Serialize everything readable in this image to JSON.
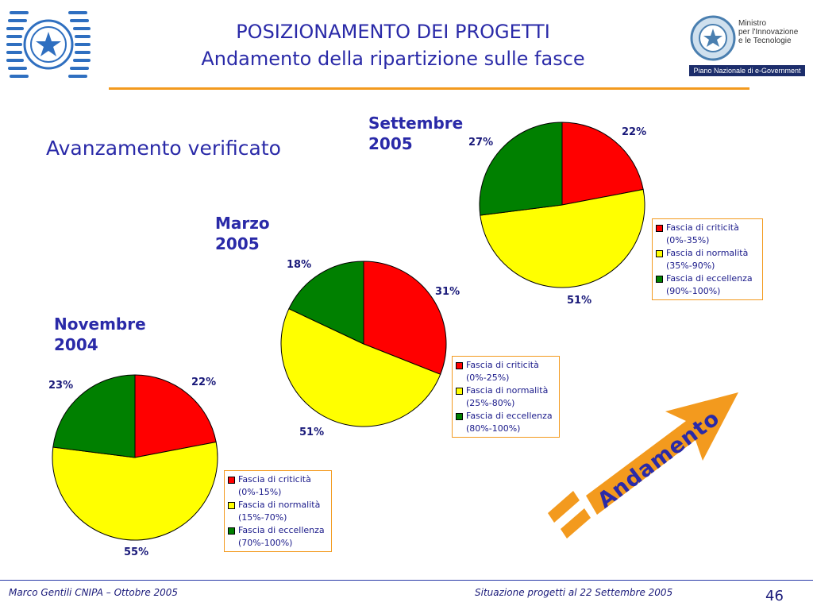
{
  "header": {
    "title": "POSIZIONAMENTO DEI PROGETTI",
    "subtitle": "Andamento della ripartizione sulle fasce",
    "partner_line1": "Ministro",
    "partner_line2": "per l'Innovazione",
    "partner_line3": "e le Tecnologie",
    "partner_banner": "Piano Nazionale di e-Government"
  },
  "section_heading": "Avanzamento verificato",
  "trend_label": "Andamento",
  "colors": {
    "accent": "#f39a1e",
    "title_blue": "#2a2aa8",
    "criticita": "#ff0000",
    "normalita": "#ffff00",
    "eccellenza": "#008000"
  },
  "chart_data": [
    {
      "type": "pie",
      "title": "Novembre 2004",
      "title_line1": "Novembre",
      "title_line2": "2004",
      "categories": [
        "Fascia di criticità",
        "Fascia di normalità",
        "Fascia di eccellenza"
      ],
      "ranges": [
        "(0%-15%)",
        "(15%-70%)",
        "(70%-100%)"
      ],
      "values": [
        22,
        55,
        23
      ],
      "labels": [
        "22%",
        "55%",
        "23%"
      ],
      "legend": "right"
    },
    {
      "type": "pie",
      "title": "Marzo 2005",
      "title_line1": "Marzo",
      "title_line2": "2005",
      "categories": [
        "Fascia di criticità",
        "Fascia di normalità",
        "Fascia di eccellenza"
      ],
      "ranges": [
        "(0%-25%)",
        "(25%-80%)",
        "(80%-100%)"
      ],
      "values": [
        31,
        51,
        18
      ],
      "labels": [
        "31%",
        "51%",
        "18%"
      ],
      "legend": "right"
    },
    {
      "type": "pie",
      "title": "Settembre 2005",
      "title_line1": "Settembre",
      "title_line2": "2005",
      "categories": [
        "Fascia di criticità",
        "Fascia di normalità",
        "Fascia di eccellenza"
      ],
      "ranges": [
        "(0%-35%)",
        "(35%-90%)",
        "(90%-100%)"
      ],
      "values": [
        22,
        51,
        27
      ],
      "labels": [
        "22%",
        "51%",
        "27%"
      ],
      "legend": "right"
    }
  ],
  "footer": {
    "left": "Marco Gentili CNIPA – Ottobre 2005",
    "center": "Situazione progetti al 22 Settembre 2005",
    "page": "46"
  }
}
